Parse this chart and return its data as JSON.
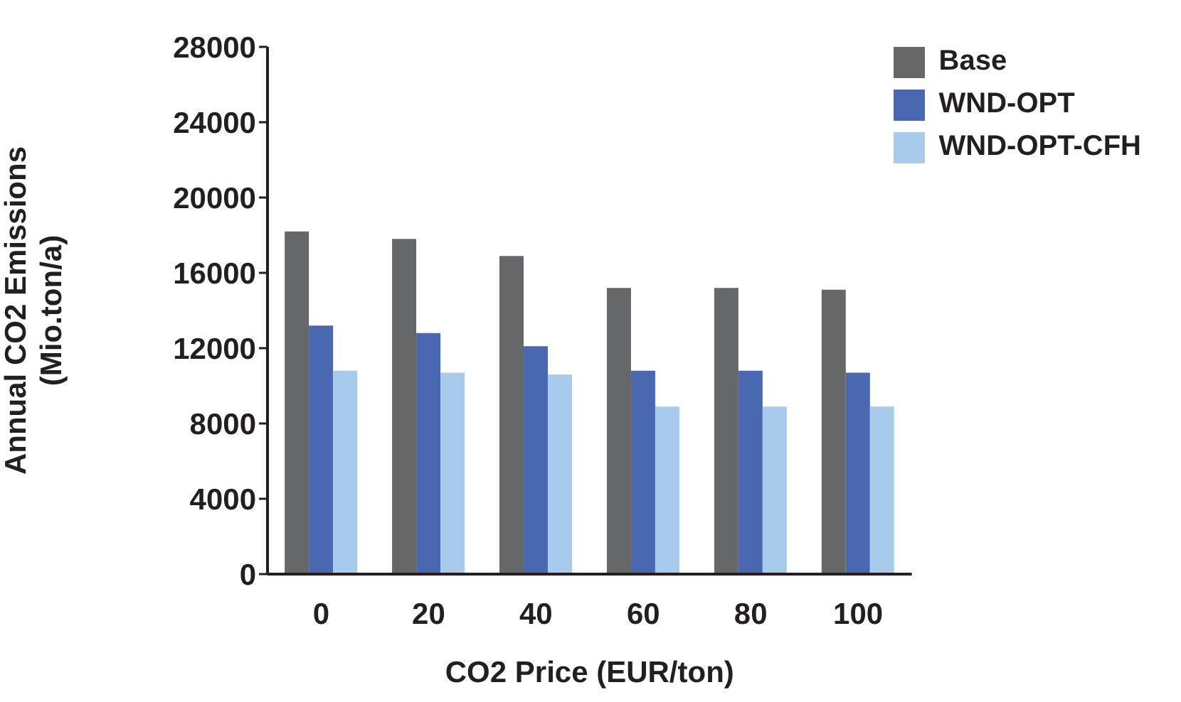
{
  "chart_data": {
    "type": "bar",
    "xlabel": "CO2 Price (EUR/ton)",
    "ylabel": "Annual CO2 Emissions\n(Mio.ton/a)",
    "categories": [
      "0",
      "20",
      "40",
      "60",
      "80",
      "100"
    ],
    "series": [
      {
        "name": "Base",
        "color": "#666769",
        "values": [
          18200,
          17800,
          16900,
          15200,
          15200,
          15100
        ]
      },
      {
        "name": "WND-OPT",
        "color": "#4a68b2",
        "values": [
          13200,
          12800,
          12100,
          10800,
          10800,
          10700
        ]
      },
      {
        "name": "WND-OPT-CFH",
        "color": "#a8caeb",
        "values": [
          10800,
          10700,
          10600,
          8900,
          8900,
          8900
        ]
      }
    ],
    "ylim": [
      0,
      28000
    ],
    "yticks": [
      0,
      4000,
      8000,
      12000,
      16000,
      20000,
      24000,
      28000
    ],
    "grid": false,
    "legend": "top right"
  }
}
